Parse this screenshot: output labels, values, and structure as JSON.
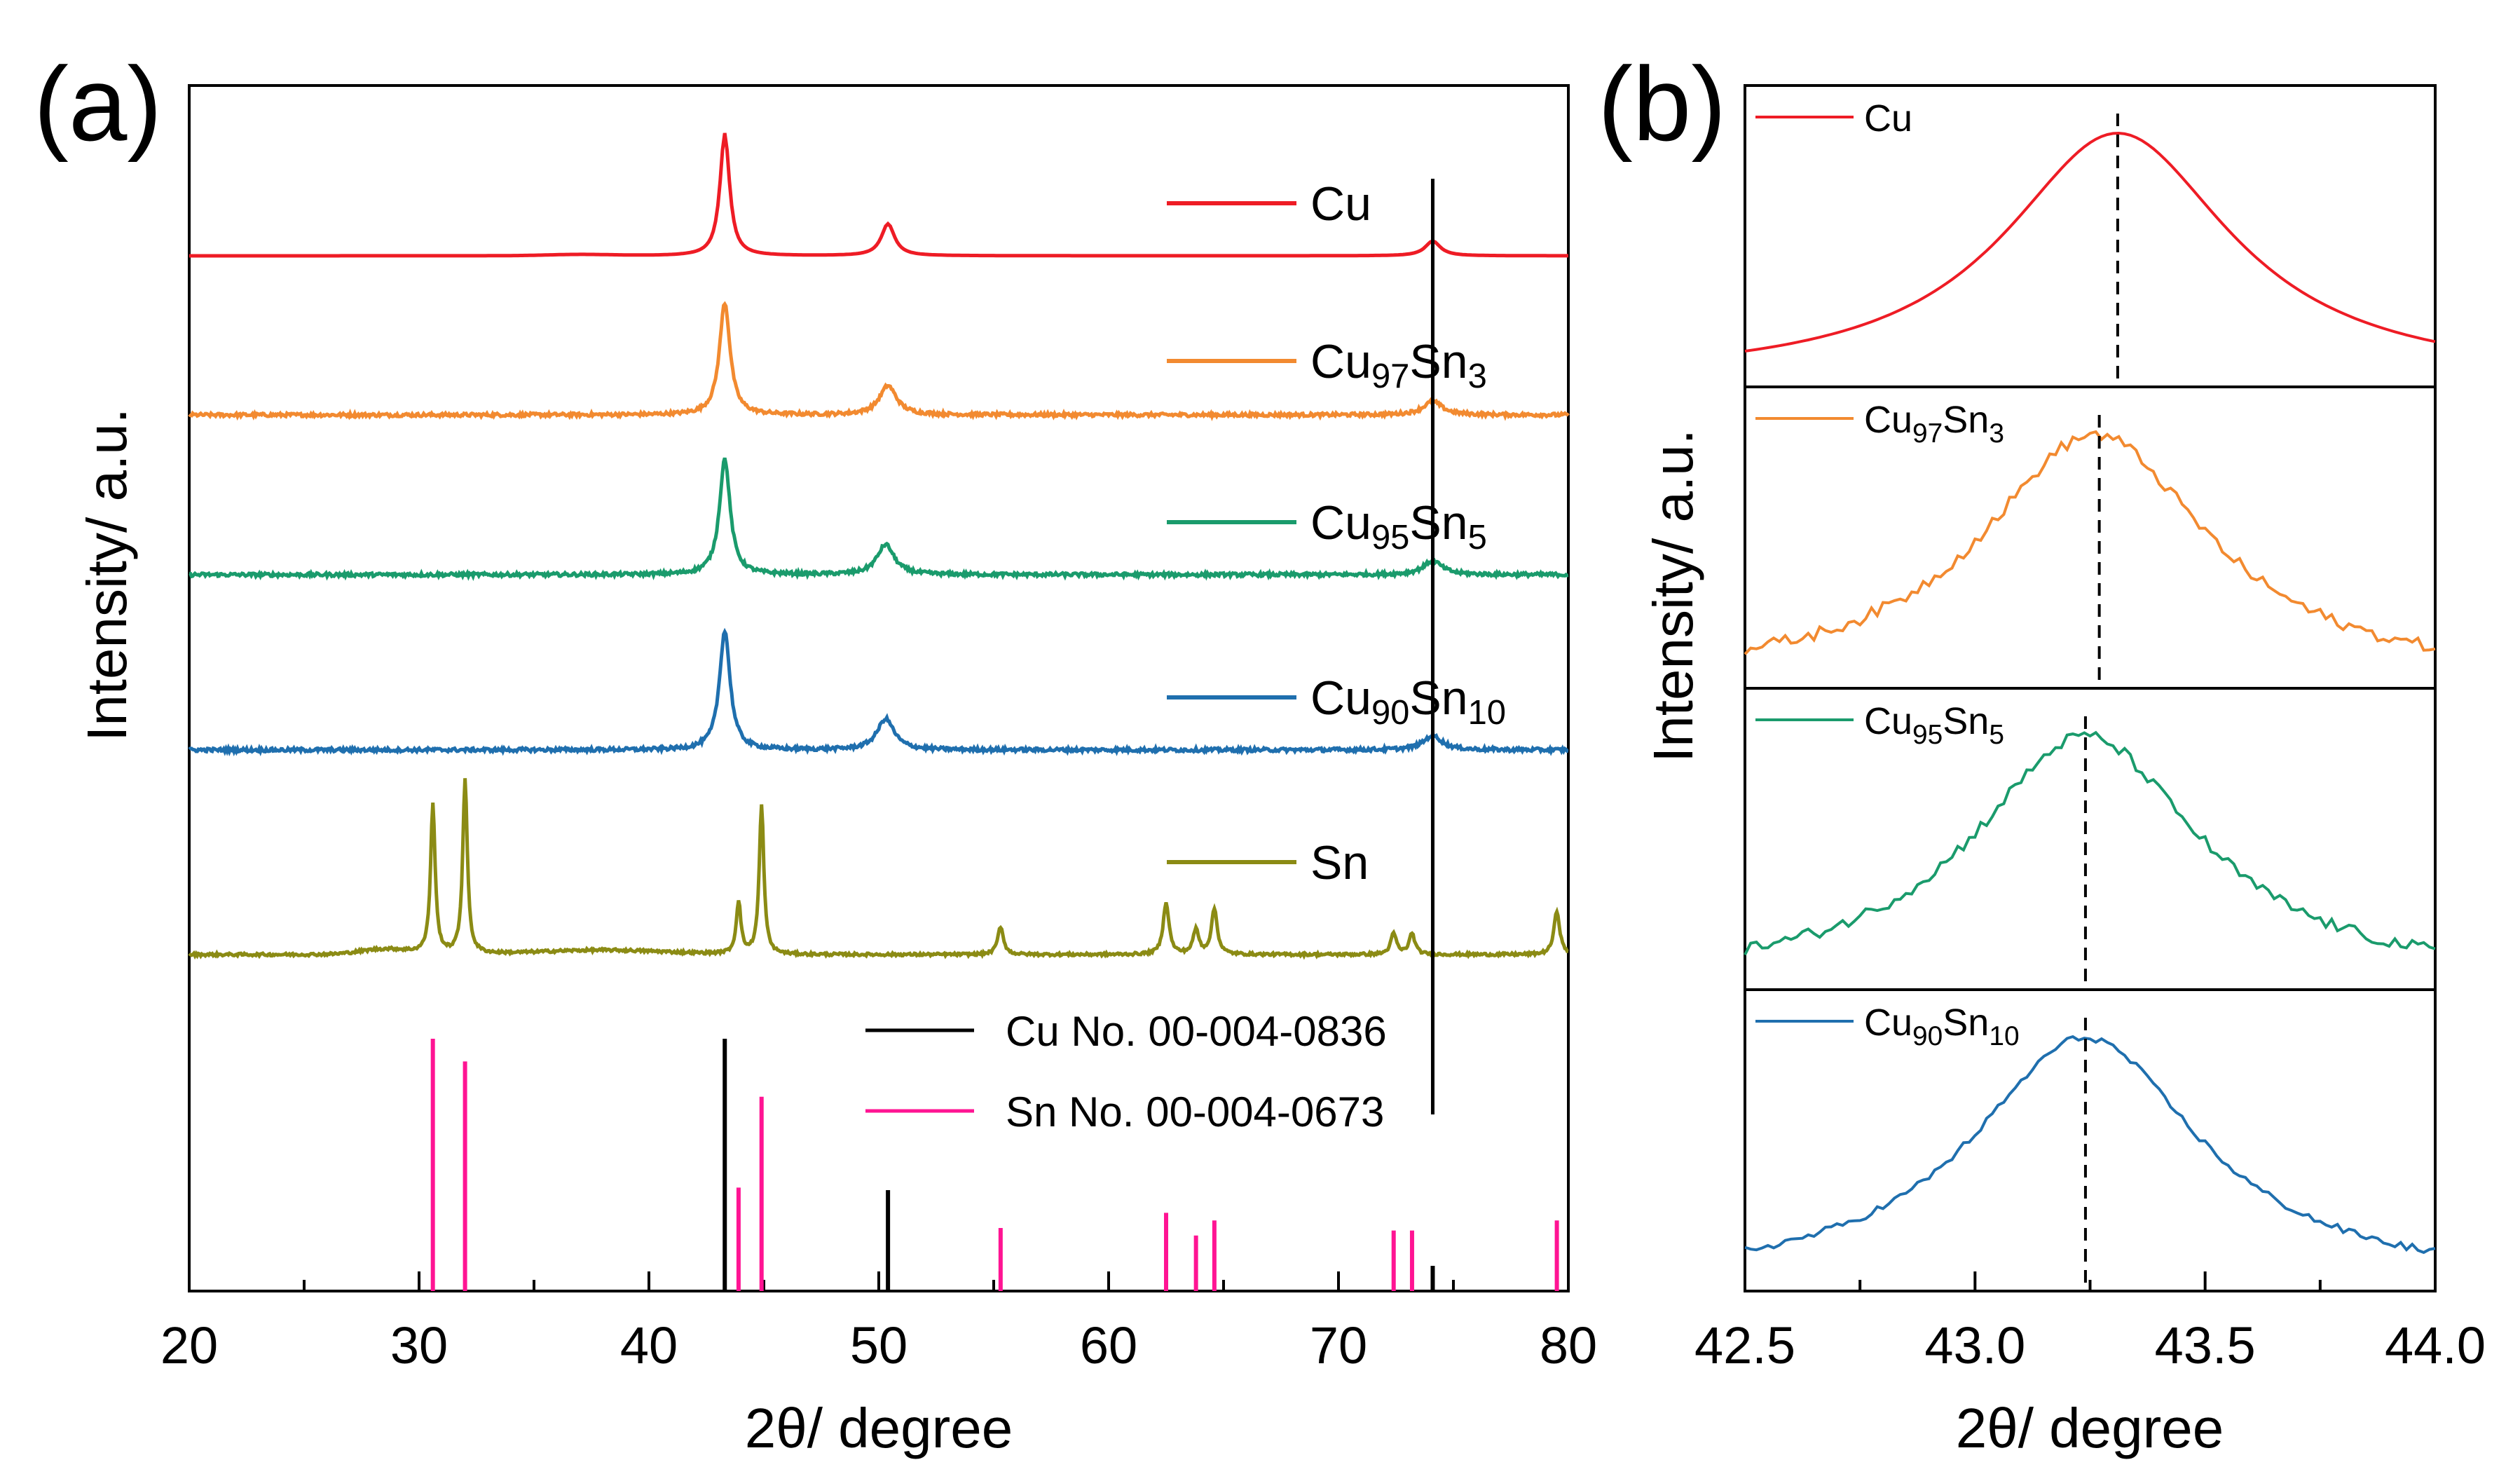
{
  "chart_data": [
    {
      "panel": "(a)",
      "type": "line",
      "subtype": "stacked XRD patterns with reference stick patterns",
      "xlabel": "2θ/ degree",
      "ylabel": "Intensity/ a.u.",
      "xlim": [
        20,
        80
      ],
      "xticks": [
        "20",
        "30",
        "40",
        "50",
        "60",
        "70",
        "80"
      ],
      "marker_line_x": 74.1,
      "series": [
        {
          "name": "Cu",
          "name_main": "Cu",
          "sub1": "",
          "mid": "",
          "sub2": "",
          "color": "#ee1c25",
          "peaks": [
            {
              "x": 43.3,
              "height": 1.0,
              "width": 0.25
            },
            {
              "x": 50.4,
              "height": 0.26,
              "width": 0.35
            },
            {
              "x": 74.1,
              "height": 0.12,
              "width": 0.4
            }
          ],
          "noise": 0.0
        },
        {
          "name": "Cu97Sn3",
          "name_main": "Cu",
          "sub1": "97",
          "mid": "Sn",
          "sub2": "3",
          "color": "#f28a30",
          "peaks": [
            {
              "x": 43.3,
              "height": 1.0,
              "width": 0.28
            },
            {
              "x": 50.4,
              "height": 0.26,
              "width": 0.45
            },
            {
              "x": 74.1,
              "height": 0.12,
              "width": 0.5
            }
          ],
          "noise": 0.03
        },
        {
          "name": "Cu95Sn5",
          "name_main": "Cu",
          "sub1": "95",
          "mid": "Sn",
          "sub2": "5",
          "color": "#1a9b6c",
          "peaks": [
            {
              "x": 43.3,
              "height": 1.0,
              "width": 0.28
            },
            {
              "x": 50.3,
              "height": 0.26,
              "width": 0.45
            },
            {
              "x": 74.1,
              "height": 0.12,
              "width": 0.5
            }
          ],
          "noise": 0.03
        },
        {
          "name": "Cu90Sn10",
          "name_main": "Cu",
          "sub1": "90",
          "mid": "Sn",
          "sub2": "10",
          "color": "#1f6fae",
          "peaks": [
            {
              "x": 43.3,
              "height": 1.0,
              "width": 0.28
            },
            {
              "x": 50.3,
              "height": 0.26,
              "width": 0.45
            },
            {
              "x": 74.1,
              "height": 0.12,
              "width": 0.5
            }
          ],
          "noise": 0.03
        },
        {
          "name": "Sn",
          "name_main": "Sn",
          "sub1": "",
          "mid": "",
          "sub2": "",
          "color": "#8b8b14",
          "peaks": [
            {
              "x": 30.6,
              "height": 0.85,
              "width": 0.12
            },
            {
              "x": 32.0,
              "height": 1.0,
              "width": 0.12
            },
            {
              "x": 43.9,
              "height": 0.3,
              "width": 0.12
            },
            {
              "x": 44.9,
              "height": 0.85,
              "width": 0.12
            },
            {
              "x": 55.3,
              "height": 0.16,
              "width": 0.15
            },
            {
              "x": 62.5,
              "height": 0.3,
              "width": 0.15
            },
            {
              "x": 63.8,
              "height": 0.14,
              "width": 0.15
            },
            {
              "x": 64.6,
              "height": 0.26,
              "width": 0.15
            },
            {
              "x": 72.4,
              "height": 0.12,
              "width": 0.15
            },
            {
              "x": 73.2,
              "height": 0.12,
              "width": 0.15
            },
            {
              "x": 79.5,
              "height": 0.25,
              "width": 0.15
            }
          ],
          "noise": 0.015
        }
      ],
      "references": [
        {
          "name": "Cu No. 00-004-0836",
          "color": "#000000",
          "sticks": [
            {
              "x": 43.3,
              "i": 100
            },
            {
              "x": 50.4,
              "i": 40
            },
            {
              "x": 74.1,
              "i": 10
            }
          ]
        },
        {
          "name": "Sn No. 00-004-0673",
          "color": "#ff1493",
          "sticks": [
            {
              "x": 30.6,
              "i": 100
            },
            {
              "x": 32.0,
              "i": 91
            },
            {
              "x": 43.9,
              "i": 41
            },
            {
              "x": 44.9,
              "i": 77
            },
            {
              "x": 55.3,
              "i": 25
            },
            {
              "x": 62.5,
              "i": 31
            },
            {
              "x": 63.8,
              "i": 22
            },
            {
              "x": 64.6,
              "i": 28
            },
            {
              "x": 72.4,
              "i": 24
            },
            {
              "x": 73.2,
              "i": 24
            },
            {
              "x": 79.5,
              "i": 28
            }
          ]
        }
      ]
    },
    {
      "panel": "(b)",
      "type": "line",
      "subtype": "zoomed (111) peak, stacked subpanels",
      "xlabel": "2θ/ degree",
      "ylabel": "Intensity/ a.u.",
      "xlim": [
        42.5,
        44.0
      ],
      "xticks": [
        "42.5",
        "43.0",
        "43.5",
        "44.0"
      ],
      "series": [
        {
          "name": "Cu",
          "name_main": "Cu",
          "sub1": "",
          "mid": "",
          "sub2": "",
          "color": "#ee1c25",
          "peak_center": 43.31,
          "dashed_x": 43.31,
          "noise": 0.0
        },
        {
          "name": "Cu97Sn3",
          "name_main": "Cu",
          "sub1": "97",
          "mid": "Sn",
          "sub2": "3",
          "color": "#f28a30",
          "peak_center": 43.26,
          "dashed_x": 43.27,
          "noise": 0.05
        },
        {
          "name": "Cu95Sn5",
          "name_main": "Cu",
          "sub1": "95",
          "mid": "Sn",
          "sub2": "5",
          "color": "#1a9b6c",
          "peak_center": 43.24,
          "dashed_x": 43.24,
          "noise": 0.05
        },
        {
          "name": "Cu90Sn10",
          "name_main": "Cu",
          "sub1": "90",
          "mid": "Sn",
          "sub2": "10",
          "color": "#1f6fae",
          "peak_center": 43.24,
          "dashed_x": 43.24,
          "noise": 0.03
        }
      ]
    }
  ]
}
